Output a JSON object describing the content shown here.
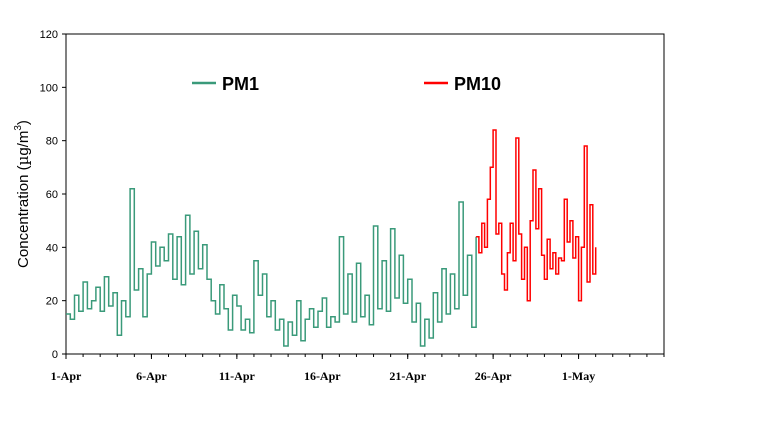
{
  "chart_data": {
    "type": "line",
    "ylabel": "Concentration (µg/m³)",
    "ylabel_parts": {
      "pre": "Concentration (",
      "mu": "µ",
      "g": "g/m",
      "sup": "3",
      "post": ")"
    },
    "ylim": [
      0,
      120
    ],
    "yticks": [
      0,
      20,
      40,
      60,
      80,
      100,
      120
    ],
    "xlim": [
      "2009-04-01",
      "2009-05-06"
    ],
    "xticks": [
      {
        "date": "2009-04-01",
        "label": "1-Apr"
      },
      {
        "date": "2009-04-06",
        "label": "6-Apr"
      },
      {
        "date": "2009-04-11",
        "label": "11-Apr"
      },
      {
        "date": "2009-04-16",
        "label": "16-Apr"
      },
      {
        "date": "2009-04-21",
        "label": "21-Apr"
      },
      {
        "date": "2009-04-26",
        "label": "26-Apr"
      },
      {
        "date": "2009-05-01",
        "label": "1-May"
      }
    ],
    "legend_position": "top",
    "grid": false,
    "series": [
      {
        "name": "PM1",
        "color": "#3a9a7a",
        "points": [
          [
            "2009-04-01 00:00",
            15
          ],
          [
            "2009-04-01 06:00",
            13
          ],
          [
            "2009-04-01 12:00",
            22
          ],
          [
            "2009-04-01 18:00",
            16
          ],
          [
            "2009-04-02 00:00",
            27
          ],
          [
            "2009-04-02 06:00",
            17
          ],
          [
            "2009-04-02 12:00",
            20
          ],
          [
            "2009-04-02 18:00",
            25
          ],
          [
            "2009-04-03 00:00",
            16
          ],
          [
            "2009-04-03 06:00",
            29
          ],
          [
            "2009-04-03 12:00",
            18
          ],
          [
            "2009-04-03 18:00",
            23
          ],
          [
            "2009-04-04 00:00",
            7
          ],
          [
            "2009-04-04 06:00",
            20
          ],
          [
            "2009-04-04 12:00",
            14
          ],
          [
            "2009-04-04 18:00",
            62
          ],
          [
            "2009-04-05 00:00",
            24
          ],
          [
            "2009-04-05 06:00",
            32
          ],
          [
            "2009-04-05 12:00",
            14
          ],
          [
            "2009-04-05 18:00",
            30
          ],
          [
            "2009-04-06 00:00",
            42
          ],
          [
            "2009-04-06 06:00",
            33
          ],
          [
            "2009-04-06 12:00",
            40
          ],
          [
            "2009-04-06 18:00",
            35
          ],
          [
            "2009-04-07 00:00",
            45
          ],
          [
            "2009-04-07 06:00",
            28
          ],
          [
            "2009-04-07 12:00",
            44
          ],
          [
            "2009-04-07 18:00",
            26
          ],
          [
            "2009-04-08 00:00",
            52
          ],
          [
            "2009-04-08 06:00",
            30
          ],
          [
            "2009-04-08 12:00",
            46
          ],
          [
            "2009-04-08 18:00",
            32
          ],
          [
            "2009-04-09 00:00",
            41
          ],
          [
            "2009-04-09 06:00",
            28
          ],
          [
            "2009-04-09 12:00",
            20
          ],
          [
            "2009-04-09 18:00",
            15
          ],
          [
            "2009-04-10 00:00",
            26
          ],
          [
            "2009-04-10 06:00",
            17
          ],
          [
            "2009-04-10 12:00",
            9
          ],
          [
            "2009-04-10 18:00",
            22
          ],
          [
            "2009-04-11 00:00",
            18
          ],
          [
            "2009-04-11 06:00",
            9
          ],
          [
            "2009-04-11 12:00",
            13
          ],
          [
            "2009-04-11 18:00",
            8
          ],
          [
            "2009-04-12 00:00",
            35
          ],
          [
            "2009-04-12 06:00",
            22
          ],
          [
            "2009-04-12 12:00",
            30
          ],
          [
            "2009-04-12 18:00",
            14
          ],
          [
            "2009-04-13 00:00",
            20
          ],
          [
            "2009-04-13 06:00",
            9
          ],
          [
            "2009-04-13 12:00",
            13
          ],
          [
            "2009-04-13 18:00",
            3
          ],
          [
            "2009-04-14 00:00",
            12
          ],
          [
            "2009-04-14 06:00",
            7
          ],
          [
            "2009-04-14 12:00",
            20
          ],
          [
            "2009-04-14 18:00",
            5
          ],
          [
            "2009-04-15 00:00",
            13
          ],
          [
            "2009-04-15 06:00",
            17
          ],
          [
            "2009-04-15 12:00",
            10
          ],
          [
            "2009-04-15 18:00",
            16
          ],
          [
            "2009-04-16 00:00",
            21
          ],
          [
            "2009-04-16 06:00",
            10
          ],
          [
            "2009-04-16 12:00",
            14
          ],
          [
            "2009-04-16 18:00",
            12
          ],
          [
            "2009-04-17 00:00",
            44
          ],
          [
            "2009-04-17 06:00",
            15
          ],
          [
            "2009-04-17 12:00",
            30
          ],
          [
            "2009-04-17 18:00",
            12
          ],
          [
            "2009-04-18 00:00",
            34
          ],
          [
            "2009-04-18 06:00",
            14
          ],
          [
            "2009-04-18 12:00",
            22
          ],
          [
            "2009-04-18 18:00",
            11
          ],
          [
            "2009-04-19 00:00",
            48
          ],
          [
            "2009-04-19 06:00",
            17
          ],
          [
            "2009-04-19 12:00",
            35
          ],
          [
            "2009-04-19 18:00",
            16
          ],
          [
            "2009-04-20 00:00",
            47
          ],
          [
            "2009-04-20 06:00",
            21
          ],
          [
            "2009-04-20 12:00",
            37
          ],
          [
            "2009-04-20 18:00",
            19
          ],
          [
            "2009-04-21 00:00",
            28
          ],
          [
            "2009-04-21 06:00",
            12
          ],
          [
            "2009-04-21 12:00",
            19
          ],
          [
            "2009-04-21 18:00",
            3
          ],
          [
            "2009-04-22 00:00",
            13
          ],
          [
            "2009-04-22 06:00",
            6
          ],
          [
            "2009-04-22 12:00",
            23
          ],
          [
            "2009-04-22 18:00",
            12
          ],
          [
            "2009-04-23 00:00",
            32
          ],
          [
            "2009-04-23 06:00",
            15
          ],
          [
            "2009-04-23 12:00",
            30
          ],
          [
            "2009-04-23 18:00",
            17
          ],
          [
            "2009-04-24 00:00",
            57
          ],
          [
            "2009-04-24 06:00",
            22
          ],
          [
            "2009-04-24 12:00",
            37
          ],
          [
            "2009-04-24 18:00",
            10
          ],
          [
            "2009-04-25 00:00",
            44
          ]
        ]
      },
      {
        "name": "PM10",
        "color": "#ff0000",
        "points": [
          [
            "2009-04-25 00:00",
            44
          ],
          [
            "2009-04-25 04:00",
            38
          ],
          [
            "2009-04-25 08:00",
            49
          ],
          [
            "2009-04-25 12:00",
            40
          ],
          [
            "2009-04-25 16:00",
            58
          ],
          [
            "2009-04-25 20:00",
            70
          ],
          [
            "2009-04-26 00:00",
            84
          ],
          [
            "2009-04-26 04:00",
            45
          ],
          [
            "2009-04-26 08:00",
            49
          ],
          [
            "2009-04-26 12:00",
            30
          ],
          [
            "2009-04-26 16:00",
            24
          ],
          [
            "2009-04-26 20:00",
            38
          ],
          [
            "2009-04-27 00:00",
            49
          ],
          [
            "2009-04-27 04:00",
            35
          ],
          [
            "2009-04-27 08:00",
            81
          ],
          [
            "2009-04-27 12:00",
            45
          ],
          [
            "2009-04-27 16:00",
            28
          ],
          [
            "2009-04-27 20:00",
            40
          ],
          [
            "2009-04-28 00:00",
            20
          ],
          [
            "2009-04-28 04:00",
            50
          ],
          [
            "2009-04-28 08:00",
            69
          ],
          [
            "2009-04-28 12:00",
            47
          ],
          [
            "2009-04-28 16:00",
            62
          ],
          [
            "2009-04-28 20:00",
            37
          ],
          [
            "2009-04-29 00:00",
            28
          ],
          [
            "2009-04-29 04:00",
            43
          ],
          [
            "2009-04-29 08:00",
            32
          ],
          [
            "2009-04-29 12:00",
            38
          ],
          [
            "2009-04-29 16:00",
            30
          ],
          [
            "2009-04-29 20:00",
            36
          ],
          [
            "2009-04-30 00:00",
            35
          ],
          [
            "2009-04-30 04:00",
            58
          ],
          [
            "2009-04-30 08:00",
            42
          ],
          [
            "2009-04-30 12:00",
            50
          ],
          [
            "2009-04-30 16:00",
            36
          ],
          [
            "2009-04-30 20:00",
            44
          ],
          [
            "2009-05-01 00:00",
            20
          ],
          [
            "2009-05-01 04:00",
            40
          ],
          [
            "2009-05-01 08:00",
            78
          ],
          [
            "2009-05-01 12:00",
            27
          ],
          [
            "2009-05-01 16:00",
            56
          ],
          [
            "2009-05-01 20:00",
            30
          ],
          [
            "2009-05-02 00:00",
            40
          ]
        ]
      }
    ]
  }
}
